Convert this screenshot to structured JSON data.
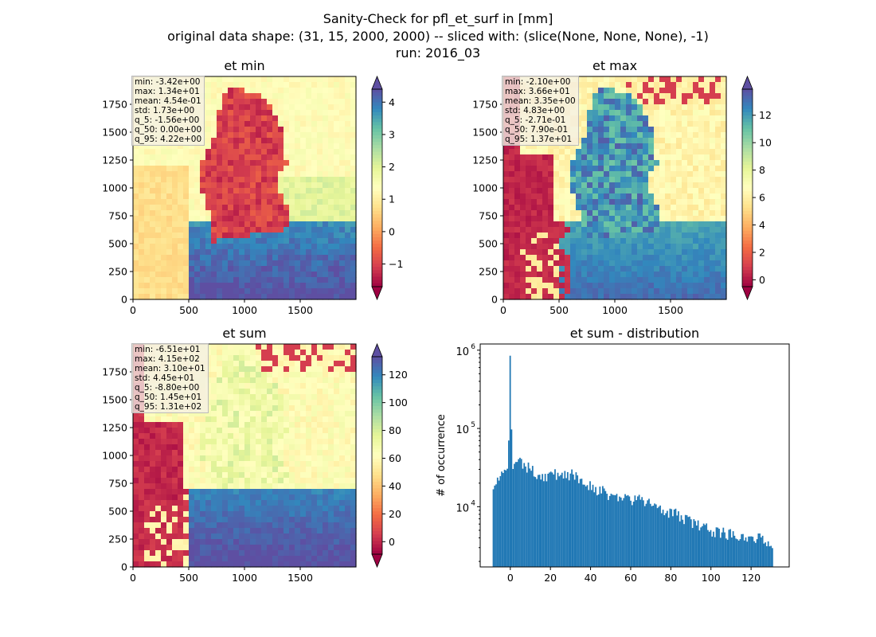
{
  "figure": {
    "title_lines": [
      "Sanity-Check for pfl_et_surf in [mm]",
      "original data shape: (31, 15, 2000, 2000) -- sliced with: (slice(None, None, None), -1)",
      "run: 2016_03"
    ]
  },
  "colormap": "Spectral",
  "chart_data": [
    {
      "type": "heatmap",
      "title": "et min",
      "xlim": [
        0,
        2000
      ],
      "ylim": [
        0,
        2000
      ],
      "xticks": [
        0,
        500,
        1000,
        1500
      ],
      "yticks": [
        0,
        250,
        500,
        750,
        1000,
        1250,
        1500,
        1750
      ],
      "colorbar": {
        "vmin": -1.7,
        "vmax": 4.4,
        "ticks": [
          -1,
          0,
          1,
          2,
          3,
          4
        ],
        "extend": "both"
      },
      "stats": [
        "min: -3.42e+00",
        "max: 1.34e+01",
        "mean: 4.54e-01",
        "std: 1.73e+00",
        "q_5: -1.56e+00",
        "q_50: 0.00e+00",
        "q_95: 4.22e+00"
      ]
    },
    {
      "type": "heatmap",
      "title": "et max",
      "xlim": [
        0,
        2000
      ],
      "ylim": [
        0,
        2000
      ],
      "xticks": [
        0,
        500,
        1000,
        1500
      ],
      "yticks": [
        0,
        250,
        500,
        750,
        1000,
        1250,
        1500,
        1750
      ],
      "colorbar": {
        "vmin": -0.5,
        "vmax": 13.9,
        "ticks": [
          0,
          2,
          4,
          6,
          8,
          10,
          12
        ],
        "extend": "both"
      },
      "stats": [
        "min: -2.10e+00",
        "max: 3.66e+01",
        "mean: 3.35e+00",
        "std: 4.83e+00",
        "q_5: -2.71e-01",
        "q_50: 7.90e-01",
        "q_95: 1.37e+01"
      ]
    },
    {
      "type": "heatmap",
      "title": "et sum",
      "xlim": [
        0,
        2000
      ],
      "ylim": [
        0,
        2000
      ],
      "xticks": [
        0,
        500,
        1000,
        1500
      ],
      "yticks": [
        0,
        250,
        500,
        750,
        1000,
        1250,
        1500,
        1750
      ],
      "colorbar": {
        "vmin": -9,
        "vmax": 133,
        "ticks": [
          0,
          20,
          40,
          60,
          80,
          100,
          120
        ],
        "extend": "both"
      },
      "stats": [
        "min: -6.51e+01",
        "max: 4.15e+02",
        "mean: 3.10e+01",
        "std: 4.45e+01",
        "q_5: -8.80e+00",
        "q_50: 1.45e+01",
        "q_95: 1.31e+02"
      ]
    },
    {
      "type": "bar",
      "subtype": "histogram",
      "title": "et sum - distribution",
      "ylabel": "# of occurrence",
      "yscale": "log",
      "xlim": [
        -15,
        139
      ],
      "ylim": [
        1700,
        1200000
      ],
      "xticks": [
        0,
        20,
        40,
        60,
        80,
        100,
        120
      ],
      "yticks": [
        {
          "value": 10000,
          "label": "10^4"
        },
        {
          "value": 100000,
          "label": "10^5"
        },
        {
          "value": 1000000,
          "label": "10^6"
        }
      ],
      "bin_range": [
        -8.8,
        131
      ],
      "bin_count": 200,
      "color": "#1f77b4",
      "approx_profile": [
        [
          -8.8,
          20000
        ],
        [
          -4,
          25000
        ],
        [
          -1,
          28000
        ],
        [
          0,
          850000
        ],
        [
          1,
          33000
        ],
        [
          5,
          36000
        ],
        [
          10,
          30000
        ],
        [
          15,
          25000
        ],
        [
          20,
          25000
        ],
        [
          25,
          27000
        ],
        [
          30,
          26000
        ],
        [
          35,
          22000
        ],
        [
          40,
          19000
        ],
        [
          45,
          16000
        ],
        [
          50,
          14000
        ],
        [
          55,
          13000
        ],
        [
          60,
          12500
        ],
        [
          65,
          12000
        ],
        [
          70,
          11000
        ],
        [
          75,
          10000
        ],
        [
          80,
          8500
        ],
        [
          85,
          7500
        ],
        [
          90,
          6500
        ],
        [
          95,
          5500
        ],
        [
          100,
          5000
        ],
        [
          110,
          4500
        ],
        [
          120,
          4200
        ],
        [
          131,
          3500
        ]
      ]
    }
  ]
}
